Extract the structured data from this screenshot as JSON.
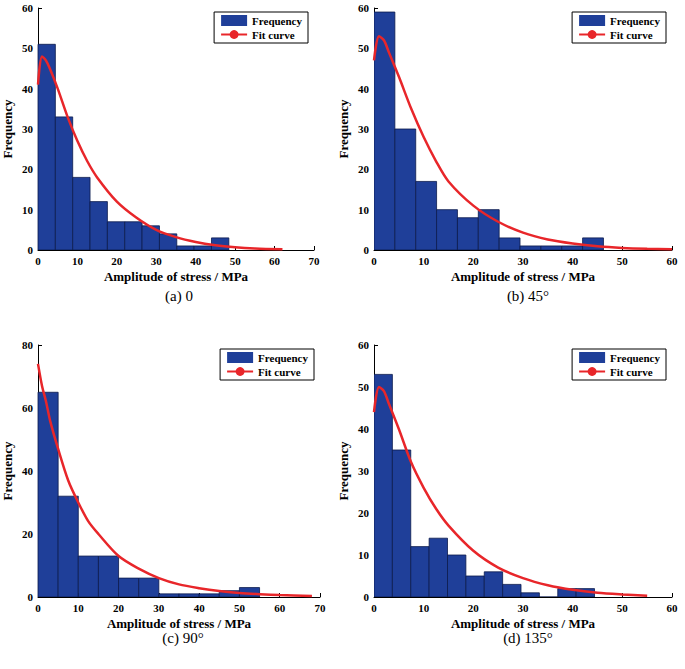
{
  "chart_data": [
    {
      "type": "histogram",
      "title": "(a) 0",
      "xlabel": "Amplitude of stress / MPa",
      "ylabel": "Frequency",
      "bins": [
        0,
        4.4,
        8.8,
        13.2,
        17.6,
        22,
        26.4,
        30.8,
        35.2,
        39.6,
        44,
        48.4
      ],
      "series": [
        {
          "name": "Frequency",
          "type": "bar",
          "color": "#1f3f99",
          "values": [
            51,
            33,
            18,
            12,
            7,
            7,
            6,
            4,
            1,
            1,
            3
          ]
        },
        {
          "name": "Fit curve",
          "type": "line",
          "color": "#e8262a",
          "x": [
            0,
            1,
            2,
            3,
            5,
            7.5,
            10,
            12.5,
            15,
            20,
            25,
            30,
            35,
            40,
            45,
            50,
            55,
            62
          ],
          "values": [
            41,
            48,
            47,
            45,
            40,
            33,
            27,
            22,
            18,
            12,
            8,
            5,
            3.2,
            2,
            1.2,
            0.7,
            0.4,
            0.2
          ]
        }
      ],
      "xlim": [
        0,
        70
      ],
      "xticks": [
        0,
        10,
        20,
        30,
        40,
        50,
        60,
        70
      ],
      "ylim": [
        0,
        60
      ],
      "yticks": [
        0,
        10,
        20,
        30,
        40,
        50,
        60
      ],
      "grid": false,
      "legend": "upper right"
    },
    {
      "type": "histogram",
      "title": "(b) 45°",
      "xlabel": "Amplitude of stress / MPa",
      "ylabel": "Frequency",
      "bins": [
        0,
        4.2,
        8.4,
        12.6,
        16.8,
        21,
        25.2,
        29.4,
        33.6,
        37.8,
        42,
        46.2
      ],
      "series": [
        {
          "name": "Frequency",
          "type": "bar",
          "color": "#1f3f99",
          "values": [
            59,
            30,
            17,
            10,
            8,
            10,
            3,
            1,
            1,
            1,
            3
          ]
        },
        {
          "name": "Fit curve",
          "type": "line",
          "color": "#e8262a",
          "x": [
            0,
            1,
            2,
            3,
            5,
            7.5,
            10,
            12.5,
            15,
            20,
            25,
            30,
            35,
            40,
            45,
            50,
            55,
            60
          ],
          "values": [
            47,
            53,
            52,
            49,
            43,
            35,
            28,
            22,
            17,
            11,
            7,
            4.3,
            2.6,
            1.6,
            0.9,
            0.5,
            0.3,
            0.2
          ]
        }
      ],
      "xlim": [
        0,
        60
      ],
      "xticks": [
        0,
        10,
        20,
        30,
        40,
        50,
        60
      ],
      "ylim": [
        0,
        60
      ],
      "yticks": [
        0,
        10,
        20,
        30,
        40,
        50,
        60
      ],
      "grid": false,
      "legend": "upper right"
    },
    {
      "type": "histogram",
      "title": "(c) 90°",
      "xlabel": "Amplitude of stress / MPa",
      "ylabel": "Frequency",
      "bins": [
        0,
        5,
        10,
        15,
        20,
        25,
        30,
        35,
        40,
        45,
        50,
        55
      ],
      "series": [
        {
          "name": "Frequency",
          "type": "bar",
          "color": "#1f3f99",
          "values": [
            65,
            32,
            13,
            13,
            6,
            6,
            1,
            1,
            1,
            2,
            3
          ]
        },
        {
          "name": "Fit curve",
          "type": "line",
          "color": "#e8262a",
          "x": [
            0,
            1,
            2,
            3,
            5,
            7.5,
            10,
            12.5,
            15,
            20,
            25,
            30,
            35,
            40,
            45,
            50,
            55,
            60,
            68
          ],
          "values": [
            74,
            67,
            62,
            56,
            47,
            37,
            30,
            24,
            20,
            13,
            9,
            6,
            4,
            2.8,
            1.9,
            1.3,
            0.9,
            0.6,
            0.3
          ]
        }
      ],
      "xlim": [
        0,
        70
      ],
      "xticks": [
        0,
        10,
        20,
        30,
        40,
        50,
        60,
        70
      ],
      "ylim": [
        0,
        80
      ],
      "yticks": [
        0,
        20,
        40,
        60,
        80
      ],
      "grid": false,
      "legend": "upper right"
    },
    {
      "type": "histogram",
      "title": "(d) 135°",
      "xlabel": "Amplitude of stress / MPa",
      "ylabel": "Frequency",
      "bins": [
        0,
        3.7,
        7.4,
        11.1,
        14.8,
        18.5,
        22.2,
        25.9,
        29.6,
        33.3,
        37,
        40.7,
        44.4
      ],
      "series": [
        {
          "name": "Frequency",
          "type": "bar",
          "color": "#1f3f99",
          "values": [
            53,
            35,
            12,
            14,
            10,
            5,
            6,
            3,
            1,
            0,
            2,
            2
          ]
        },
        {
          "name": "Fit curve",
          "type": "line",
          "color": "#e8262a",
          "x": [
            0,
            1,
            2,
            3,
            5,
            7.5,
            10,
            12.5,
            15,
            20,
            25,
            30,
            35,
            40,
            45,
            50,
            55
          ],
          "values": [
            44,
            50,
            49,
            46,
            40,
            32,
            26,
            21,
            17,
            11,
            7,
            4.5,
            2.8,
            1.7,
            1,
            0.6,
            0.3
          ]
        }
      ],
      "xlim": [
        0,
        60
      ],
      "xticks": [
        0,
        10,
        20,
        30,
        40,
        50,
        60
      ],
      "ylim": [
        0,
        60
      ],
      "yticks": [
        0,
        10,
        20,
        30,
        40,
        50,
        60
      ],
      "grid": false,
      "legend": "upper right"
    }
  ]
}
